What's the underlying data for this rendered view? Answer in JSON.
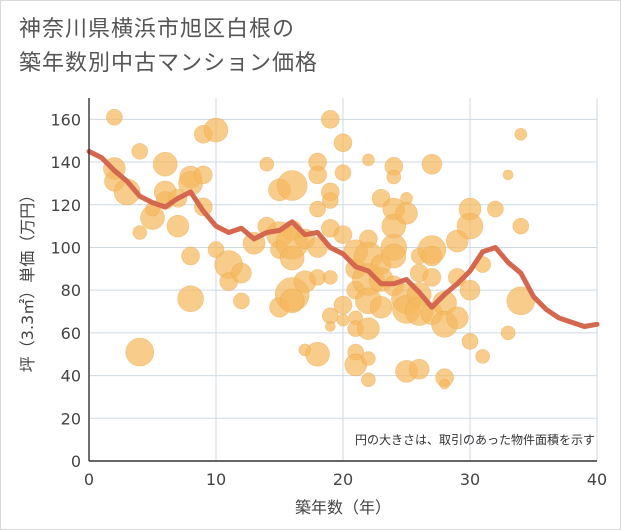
{
  "title_lines": [
    "神奈川県横浜市旭区白根の",
    "築年数別中古マンション価格"
  ],
  "chart_data": {
    "type": "scatter",
    "xlabel": "築年数（年）",
    "ylabel": "坪（3.3㎡）単価（万円）",
    "note": "円の大きさは、取引のあった物件面積を示す",
    "xlim": [
      0,
      40
    ],
    "ylim": [
      0,
      170
    ],
    "xticks": [
      0,
      10,
      20,
      30,
      40
    ],
    "yticks": [
      0,
      20,
      40,
      60,
      80,
      100,
      120,
      140,
      160
    ],
    "grid": true,
    "bubble_color": "#f5b95e",
    "line_color": "#d4674d",
    "points": [
      [
        2,
        161,
        8
      ],
      [
        2,
        137,
        11
      ],
      [
        2,
        131,
        10
      ],
      [
        3,
        126,
        13
      ],
      [
        4,
        145,
        8
      ],
      [
        4,
        107,
        7
      ],
      [
        5,
        114,
        12
      ],
      [
        5,
        118,
        7
      ],
      [
        4,
        51,
        14
      ],
      [
        6,
        139,
        12
      ],
      [
        6,
        126,
        11
      ],
      [
        6,
        122,
        9
      ],
      [
        7,
        110,
        11
      ],
      [
        7,
        123,
        9
      ],
      [
        8,
        133,
        11
      ],
      [
        8,
        130,
        12
      ],
      [
        8,
        96,
        9
      ],
      [
        8,
        76,
        13
      ],
      [
        9,
        153,
        9
      ],
      [
        9,
        134,
        9
      ],
      [
        9,
        119,
        9
      ],
      [
        10,
        155,
        12
      ],
      [
        10,
        99,
        8
      ],
      [
        11,
        92,
        14
      ],
      [
        11,
        84,
        9
      ],
      [
        12,
        88,
        10
      ],
      [
        12,
        75,
        8
      ],
      [
        13,
        102,
        11
      ],
      [
        14,
        139,
        7
      ],
      [
        14,
        110,
        9
      ],
      [
        15,
        127,
        11
      ],
      [
        15,
        106,
        13
      ],
      [
        15,
        99,
        9
      ],
      [
        15,
        72,
        10
      ],
      [
        16,
        129,
        15
      ],
      [
        16,
        108,
        10
      ],
      [
        16,
        102,
        16
      ],
      [
        16,
        95,
        12
      ],
      [
        16,
        78,
        17
      ],
      [
        16,
        75,
        12
      ],
      [
        17,
        104,
        10
      ],
      [
        17,
        84,
        11
      ],
      [
        17,
        52,
        6
      ],
      [
        18,
        140,
        9
      ],
      [
        18,
        134,
        9
      ],
      [
        18,
        118,
        8
      ],
      [
        18,
        100,
        10
      ],
      [
        18,
        86,
        8
      ],
      [
        18,
        50,
        12
      ],
      [
        19,
        160,
        9
      ],
      [
        19,
        126,
        9
      ],
      [
        19,
        122,
        8
      ],
      [
        19,
        109,
        9
      ],
      [
        19,
        86,
        7
      ],
      [
        19,
        68,
        8
      ],
      [
        19,
        63,
        5
      ],
      [
        20,
        149,
        9
      ],
      [
        20,
        135,
        8
      ],
      [
        20,
        106,
        9
      ],
      [
        20,
        73,
        9
      ],
      [
        20,
        66,
        6
      ],
      [
        21,
        98,
        12
      ],
      [
        21,
        90,
        10
      ],
      [
        21,
        80,
        9
      ],
      [
        21,
        67,
        7
      ],
      [
        21,
        62,
        8
      ],
      [
        21,
        51,
        8
      ],
      [
        21,
        45,
        11
      ],
      [
        22,
        141,
        6
      ],
      [
        22,
        104,
        9
      ],
      [
        22,
        96,
        14
      ],
      [
        22,
        85,
        16
      ],
      [
        22,
        75,
        13
      ],
      [
        22,
        62,
        11
      ],
      [
        22,
        48,
        7
      ],
      [
        22,
        38,
        7
      ],
      [
        23,
        123,
        9
      ],
      [
        23,
        92,
        10
      ],
      [
        23,
        85,
        12
      ],
      [
        23,
        72,
        11
      ],
      [
        24,
        138,
        9
      ],
      [
        24,
        133,
        7
      ],
      [
        24,
        118,
        11
      ],
      [
        24,
        110,
        12
      ],
      [
        24,
        100,
        13
      ],
      [
        24,
        96,
        12
      ],
      [
        24,
        82,
        10
      ],
      [
        25,
        123,
        6
      ],
      [
        25,
        116,
        11
      ],
      [
        25,
        76,
        15
      ],
      [
        25,
        71,
        14
      ],
      [
        25,
        42,
        11
      ],
      [
        26,
        96,
        8
      ],
      [
        26,
        88,
        9
      ],
      [
        26,
        78,
        12
      ],
      [
        26,
        70,
        14
      ],
      [
        26,
        43,
        10
      ],
      [
        27,
        139,
        10
      ],
      [
        27,
        99,
        14
      ],
      [
        27,
        96,
        10
      ],
      [
        27,
        86,
        9
      ],
      [
        27,
        69,
        11
      ],
      [
        28,
        74,
        12
      ],
      [
        28,
        64,
        13
      ],
      [
        28,
        39,
        9
      ],
      [
        28,
        36,
        5
      ],
      [
        29,
        103,
        11
      ],
      [
        29,
        86,
        9
      ],
      [
        29,
        67,
        11
      ],
      [
        30,
        118,
        11
      ],
      [
        30,
        110,
        13
      ],
      [
        30,
        80,
        10
      ],
      [
        30,
        56,
        8
      ],
      [
        31,
        92,
        8
      ],
      [
        31,
        49,
        7
      ],
      [
        32,
        118,
        8
      ],
      [
        33,
        134,
        5
      ],
      [
        33,
        60,
        7
      ],
      [
        34,
        153,
        6
      ],
      [
        34,
        110,
        8
      ],
      [
        34,
        75,
        14
      ]
    ],
    "trend_line": [
      [
        0,
        145
      ],
      [
        1,
        142
      ],
      [
        2,
        136
      ],
      [
        3,
        131
      ],
      [
        4,
        124
      ],
      [
        5,
        121
      ],
      [
        6,
        119
      ],
      [
        7,
        123
      ],
      [
        8,
        126
      ],
      [
        9,
        117
      ],
      [
        10,
        110
      ],
      [
        11,
        107
      ],
      [
        12,
        109
      ],
      [
        13,
        104
      ],
      [
        14,
        107
      ],
      [
        15,
        108
      ],
      [
        16,
        112
      ],
      [
        17,
        106
      ],
      [
        18,
        107
      ],
      [
        19,
        100
      ],
      [
        20,
        97
      ],
      [
        21,
        91
      ],
      [
        22,
        89
      ],
      [
        23,
        83
      ],
      [
        24,
        83
      ],
      [
        25,
        85
      ],
      [
        26,
        79
      ],
      [
        27,
        72
      ],
      [
        28,
        78
      ],
      [
        29,
        83
      ],
      [
        30,
        89
      ],
      [
        31,
        98
      ],
      [
        32,
        100
      ],
      [
        33,
        93
      ],
      [
        34,
        88
      ],
      [
        35,
        77
      ],
      [
        36,
        71
      ],
      [
        37,
        67
      ],
      [
        38,
        65
      ],
      [
        39,
        63
      ],
      [
        40,
        64
      ]
    ]
  }
}
